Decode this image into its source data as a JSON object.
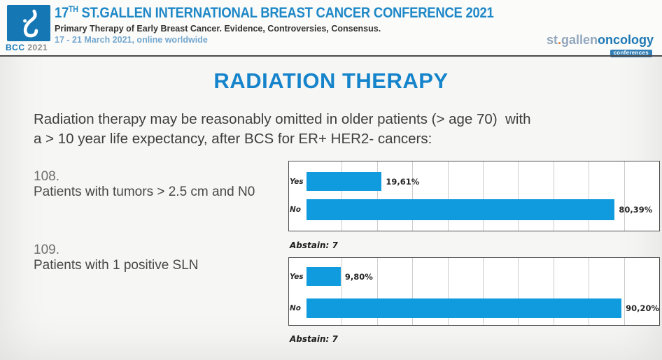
{
  "colors": {
    "bar_blue": "#0f9bdd",
    "title_blue": "#1e88c7",
    "slide_title_blue": "#1584cb",
    "date_blue": "#73a7ce",
    "logo_blue": "#1677b5",
    "badge_blue": "#3380b8"
  },
  "header": {
    "logo_bcc": "BCC",
    "logo_year": "2021",
    "title_num": "17",
    "title_sup": "TH",
    "title_main": " ST.GALLEN INTERNATIONAL BREAST CANCER CONFERENCE 2021",
    "subtitle": "Primary Therapy of Early Breast Cancer. Evidence, Controversies, Consensus.",
    "dates": "17 - 21 March 2021, online worldwide",
    "brand_st": "st",
    "brand_dot": ".",
    "brand_gallen": "gallen",
    "brand_oncology": "oncology",
    "brand_badge": "conferences"
  },
  "slide": {
    "title": "RADIATION THERAPY",
    "intro_line1": "Radiation therapy may be reasonably omitted in older patients (> age 70)  with",
    "intro_line2": "a > 10 year life expectancy, after BCS for ER+ HER2- cancers:"
  },
  "chart_data": [
    {
      "type": "bar",
      "orientation": "horizontal",
      "question_number": "108.",
      "question": "Patients with tumors > 2.5 cm and N0",
      "categories": [
        "Yes",
        "No"
      ],
      "values": [
        19.61,
        80.39
      ],
      "value_labels": [
        "19,61%",
        "80,39%"
      ],
      "abstain_label": "Abstain: 7",
      "xmax": 92,
      "grid_divisions": 10,
      "grid": true,
      "legend": false
    },
    {
      "type": "bar",
      "orientation": "horizontal",
      "question_number": "109.",
      "question": "Patients with 1 positive SLN",
      "categories": [
        "Yes",
        "No"
      ],
      "values": [
        9.8,
        90.2
      ],
      "value_labels": [
        "9,80%",
        "90,20%"
      ],
      "abstain_label": "Abstain: 7",
      "xmax": 101,
      "grid_divisions": 10,
      "grid": true,
      "legend": false
    }
  ]
}
